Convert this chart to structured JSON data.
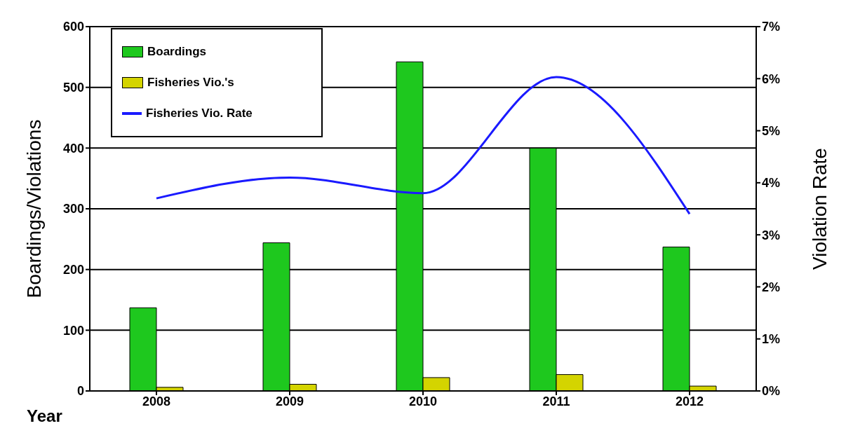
{
  "chart_data": {
    "type": "bar",
    "xlabel": "Year",
    "ylabel": "Boardings/Violations",
    "y2label": "Violation Rate",
    "categories": [
      "2008",
      "2009",
      "2010",
      "2011",
      "2012"
    ],
    "series": [
      {
        "name": "Boardings",
        "color": "#1ec81e",
        "values": [
          137,
          244,
          542,
          400,
          237
        ]
      },
      {
        "name": "Fisheries Vio.'s",
        "color": "#d4d400",
        "values": [
          6,
          11,
          22,
          27,
          8
        ]
      },
      {
        "name": "Fisheries Vio. Rate",
        "type": "line",
        "axis": "y2",
        "color": "#1a1aff",
        "values": [
          3.7,
          4.1,
          3.8,
          6.03,
          3.4
        ]
      }
    ],
    "ylim": [
      0,
      600
    ],
    "yticks": [
      0,
      100,
      200,
      300,
      400,
      500,
      600
    ],
    "y2lim": [
      0,
      7
    ],
    "y2ticks": [
      {
        "value": 0,
        "label": "0%"
      },
      {
        "value": 1,
        "label": "1%"
      },
      {
        "value": 2,
        "label": "2%"
      },
      {
        "value": 3,
        "label": "3%"
      },
      {
        "value": 4,
        "label": "4%"
      },
      {
        "value": 5,
        "label": "5%"
      },
      {
        "value": 6,
        "label": "6%"
      },
      {
        "value": 7,
        "label": "7%"
      }
    ],
    "grid": "y",
    "legend": "top left",
    "marker": "none"
  }
}
